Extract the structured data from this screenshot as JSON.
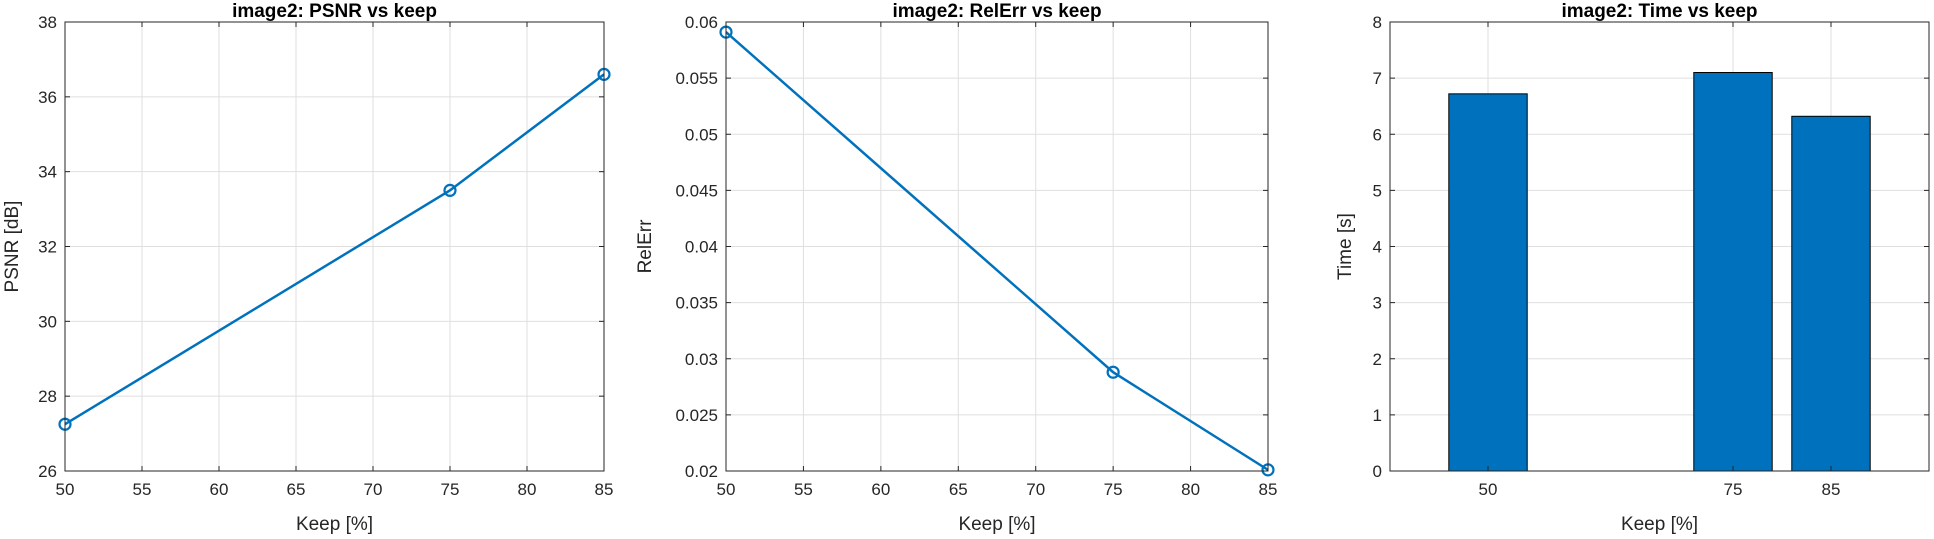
{
  "chart_data": [
    {
      "type": "line",
      "title": "image2: PSNR vs keep",
      "xlabel": "Keep [%]",
      "ylabel": "PSNR [dB]",
      "xlim": [
        50,
        85
      ],
      "ylim": [
        26,
        38
      ],
      "xticks": [
        "50",
        "55",
        "60",
        "65",
        "70",
        "75",
        "80",
        "85"
      ],
      "yticks": [
        "26",
        "28",
        "30",
        "32",
        "34",
        "36",
        "38"
      ],
      "grid": true,
      "marker": "circle",
      "color": "#0072bd",
      "x": [
        50,
        75,
        85
      ],
      "y": [
        27.25,
        33.5,
        36.6
      ]
    },
    {
      "type": "line",
      "title": "image2: RelErr vs keep",
      "xlabel": "Keep [%]",
      "ylabel": "RelErr",
      "xlim": [
        50,
        85
      ],
      "ylim": [
        0.02,
        0.06
      ],
      "xticks": [
        "50",
        "55",
        "60",
        "65",
        "70",
        "75",
        "80",
        "85"
      ],
      "yticks": [
        "0.02",
        "0.025",
        "0.03",
        "0.035",
        "0.04",
        "0.045",
        "0.05",
        "0.055",
        "0.06"
      ],
      "grid": true,
      "marker": "circle",
      "color": "#0072bd",
      "x": [
        50,
        75,
        85
      ],
      "y": [
        0.0591,
        0.0288,
        0.0201
      ]
    },
    {
      "type": "bar",
      "title": "image2: Time vs keep",
      "xlabel": "Keep [%]",
      "ylabel": "Time [s]",
      "xlim": [
        40,
        95
      ],
      "ylim": [
        0,
        8
      ],
      "xticks": [
        "50",
        "75",
        "85"
      ],
      "yticks": [
        "0",
        "1",
        "2",
        "3",
        "4",
        "5",
        "6",
        "7",
        "8"
      ],
      "grid": true,
      "color": "#0072bd",
      "bar_width": 8,
      "x": [
        50,
        75,
        85
      ],
      "values": [
        6.72,
        7.1,
        6.32
      ]
    }
  ]
}
